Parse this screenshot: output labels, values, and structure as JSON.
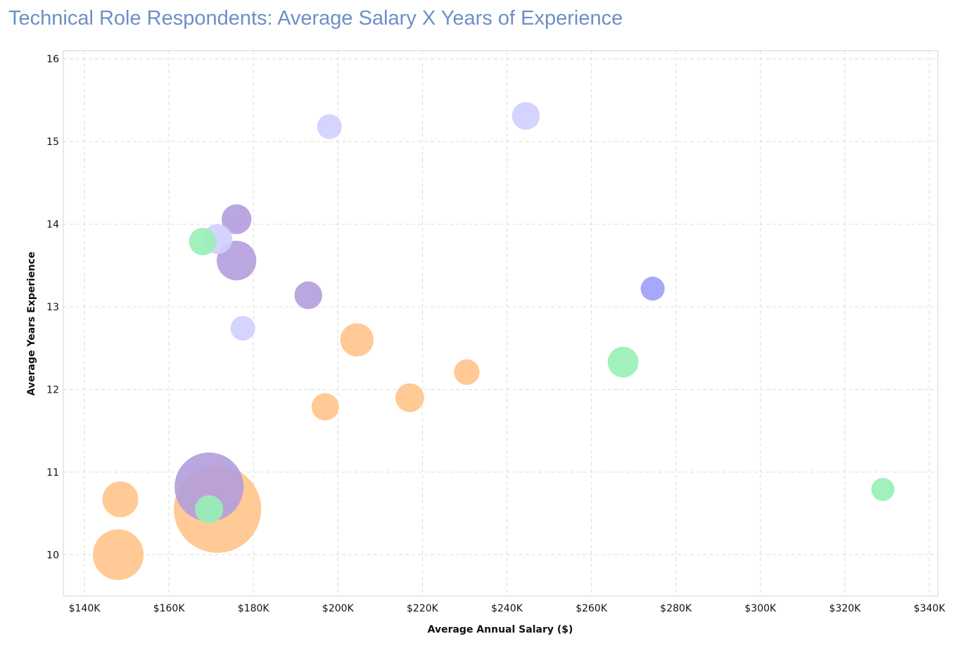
{
  "chart_data": {
    "type": "scatter",
    "bubble": true,
    "title": "Technical Role Respondents: Average Salary X Years of Experience",
    "xlabel": "Average Annual Salary ($)",
    "ylabel": "Average Years Experience",
    "xlim": [
      135000,
      342000
    ],
    "ylim": [
      9.5,
      16.1
    ],
    "x_ticks": [
      140000,
      160000,
      180000,
      200000,
      220000,
      240000,
      260000,
      280000,
      300000,
      320000,
      340000
    ],
    "x_tick_labels": [
      "$140K",
      "$160K",
      "$180K",
      "$200K",
      "$220K",
      "$240K",
      "$260K",
      "$280K",
      "$300K",
      "$320K",
      "$340K"
    ],
    "y_ticks": [
      10,
      11,
      12,
      13,
      14,
      15,
      16
    ],
    "y_tick_labels": [
      "10",
      "11",
      "12",
      "13",
      "14",
      "15",
      "16"
    ],
    "grid": true,
    "colors": {
      "orange": "#ffc48a",
      "purple": "#b39ddb",
      "green": "#98f0b6",
      "lavender": "#cfcfff",
      "blue": "#9f9ffa"
    },
    "points": [
      {
        "x": 171500,
        "y": 10.55,
        "size": 3850,
        "color": "orange"
      },
      {
        "x": 169500,
        "y": 10.82,
        "size": 2400,
        "color": "purple"
      },
      {
        "x": 148000,
        "y": 10.0,
        "size": 1300,
        "color": "orange"
      },
      {
        "x": 148500,
        "y": 10.67,
        "size": 650,
        "color": "orange"
      },
      {
        "x": 169500,
        "y": 10.55,
        "size": 400,
        "color": "green"
      },
      {
        "x": 204500,
        "y": 12.6,
        "size": 560,
        "color": "orange"
      },
      {
        "x": 217000,
        "y": 11.9,
        "size": 420,
        "color": "orange"
      },
      {
        "x": 197000,
        "y": 11.79,
        "size": 380,
        "color": "orange"
      },
      {
        "x": 230500,
        "y": 12.21,
        "size": 330,
        "color": "orange"
      },
      {
        "x": 176000,
        "y": 13.56,
        "size": 790,
        "color": "purple"
      },
      {
        "x": 176000,
        "y": 14.06,
        "size": 450,
        "color": "purple"
      },
      {
        "x": 193000,
        "y": 13.14,
        "size": 390,
        "color": "purple"
      },
      {
        "x": 171500,
        "y": 13.82,
        "size": 450,
        "color": "lavender"
      },
      {
        "x": 168000,
        "y": 13.79,
        "size": 380,
        "color": "green"
      },
      {
        "x": 177500,
        "y": 12.74,
        "size": 310,
        "color": "lavender"
      },
      {
        "x": 198000,
        "y": 15.18,
        "size": 310,
        "color": "lavender"
      },
      {
        "x": 244500,
        "y": 15.31,
        "size": 390,
        "color": "lavender"
      },
      {
        "x": 274500,
        "y": 13.22,
        "size": 290,
        "color": "blue"
      },
      {
        "x": 267500,
        "y": 12.33,
        "size": 480,
        "color": "green"
      },
      {
        "x": 329000,
        "y": 10.79,
        "size": 270,
        "color": "green"
      }
    ]
  }
}
